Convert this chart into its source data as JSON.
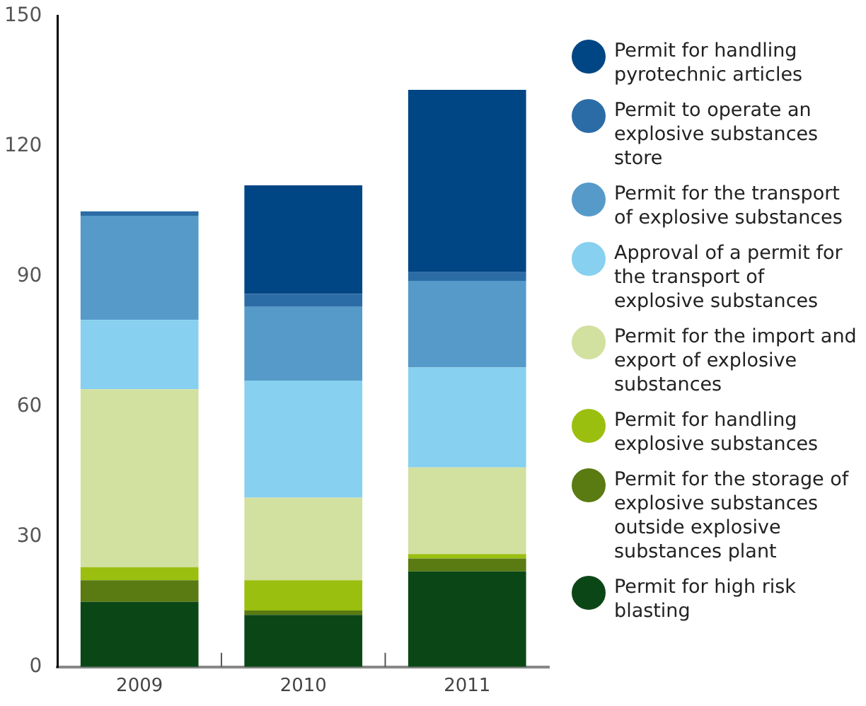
{
  "chart_data": {
    "type": "bar",
    "stacked": true,
    "categories": [
      "2009",
      "2010",
      "2011"
    ],
    "series": [
      {
        "name": "Permit for high risk blasting",
        "color": "#0b4716",
        "values": [
          15,
          12,
          22
        ]
      },
      {
        "name": "Permit for the storage of explosive substances outside explosive substances plant",
        "color": "#5a7a12",
        "values": [
          5,
          1,
          3
        ]
      },
      {
        "name": "Permit for handling explosive substances",
        "color": "#9abf0f",
        "values": [
          3,
          7,
          1
        ]
      },
      {
        "name": "Permit for the import and export of explosive substances",
        "color": "#d2e0a0",
        "values": [
          41,
          19,
          20
        ]
      },
      {
        "name": "Approval of a permit for the transport of explosive substances",
        "color": "#87d0ef",
        "values": [
          16,
          27,
          23
        ]
      },
      {
        "name": "Permit for the transport of explosive substances",
        "color": "#559ac9",
        "values": [
          24,
          17,
          20
        ]
      },
      {
        "name": "Permit to operate an explosive substances store",
        "color": "#2c6ca6",
        "values": [
          1,
          3,
          2
        ]
      },
      {
        "name": "Permit for handling pyrotechnic articles",
        "color": "#004584",
        "values": [
          0,
          25,
          42
        ]
      }
    ],
    "ylim": [
      0,
      150
    ],
    "yticks": [
      0,
      30,
      60,
      90,
      120,
      150
    ],
    "grid": false,
    "legend": "right"
  }
}
